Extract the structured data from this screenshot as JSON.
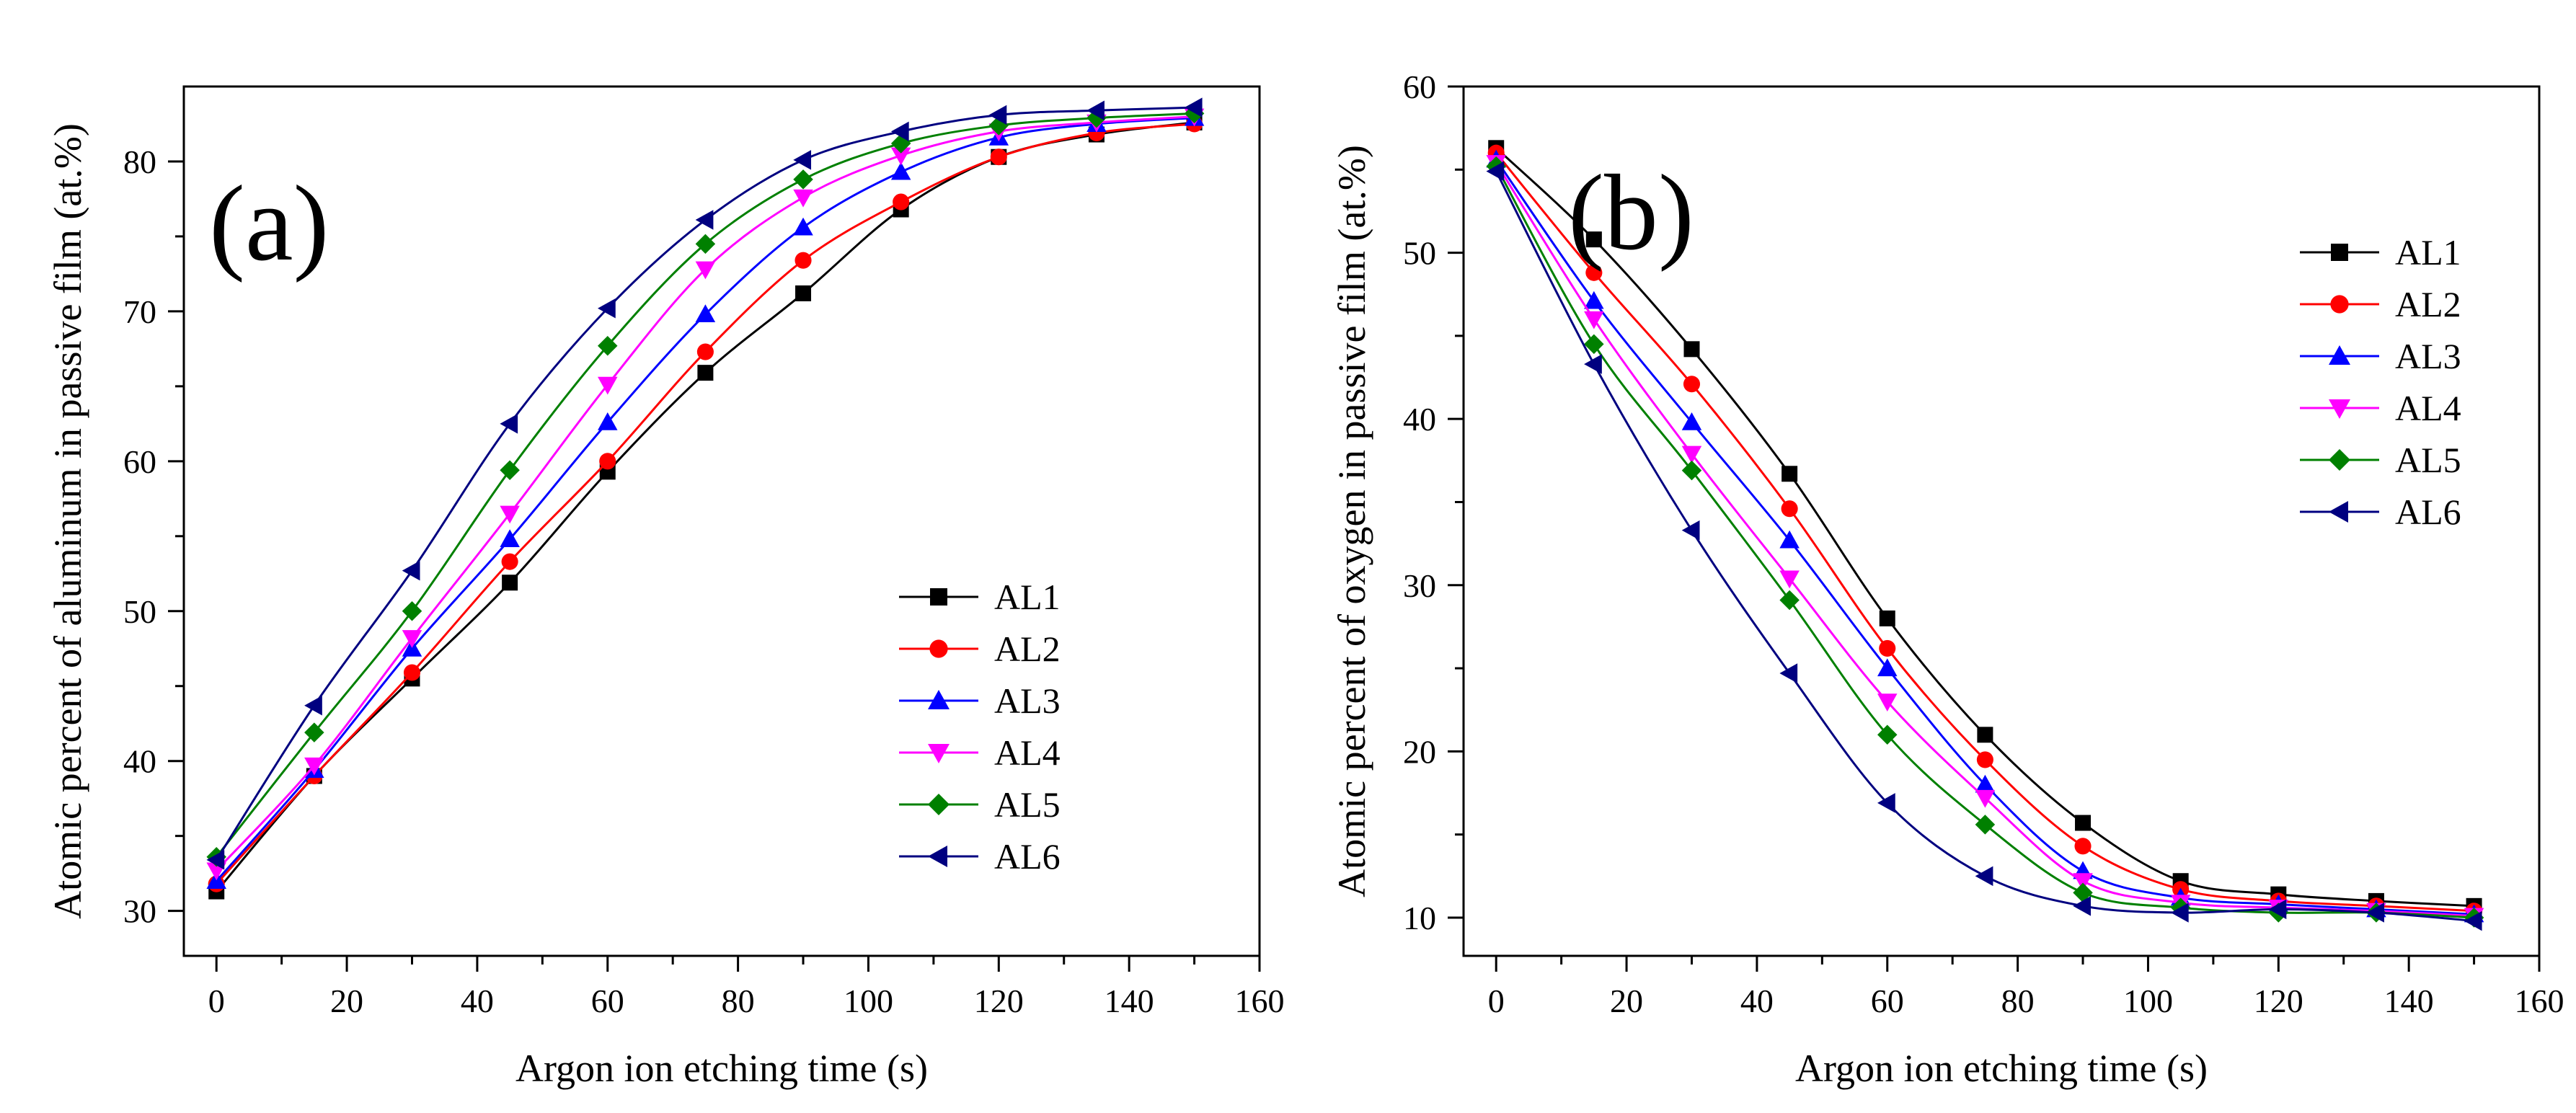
{
  "chart_data": [
    {
      "type": "line",
      "panel_label": "(a)",
      "xlabel": "Argon ion etching time (s)",
      "ylabel": "Atomic percent of aluminum in passive film (at.%)",
      "xlim": [
        -5,
        160
      ],
      "ylim": [
        27,
        85
      ],
      "xticks": [
        0,
        20,
        40,
        60,
        80,
        100,
        120,
        140,
        160
      ],
      "yticks": [
        30,
        40,
        50,
        60,
        70,
        80
      ],
      "x": [
        0,
        15,
        30,
        45,
        60,
        75,
        90,
        105,
        120,
        135,
        150
      ],
      "legend_position": "lower-right",
      "series": [
        {
          "name": "AL1",
          "color": "#000000",
          "marker": "square",
          "values": [
            31.3,
            39.0,
            45.5,
            51.9,
            59.3,
            65.9,
            71.2,
            76.8,
            80.3,
            81.8,
            82.6
          ]
        },
        {
          "name": "AL2",
          "color": "#ff0000",
          "marker": "circle",
          "values": [
            31.8,
            39.0,
            45.9,
            53.3,
            60.0,
            67.3,
            73.4,
            77.3,
            80.3,
            81.9,
            82.5
          ]
        },
        {
          "name": "AL3",
          "color": "#0000ff",
          "marker": "triangle-up",
          "values": [
            32.0,
            39.4,
            47.5,
            54.8,
            62.6,
            69.8,
            75.6,
            79.3,
            81.6,
            82.5,
            82.9
          ]
        },
        {
          "name": "AL4",
          "color": "#ff00ff",
          "marker": "triangle-down",
          "values": [
            32.7,
            39.7,
            48.2,
            56.5,
            65.1,
            72.8,
            77.6,
            80.4,
            82.0,
            82.6,
            83.0
          ]
        },
        {
          "name": "AL5",
          "color": "#008000",
          "marker": "diamond",
          "values": [
            33.6,
            41.9,
            50.0,
            59.4,
            67.7,
            74.5,
            78.8,
            81.2,
            82.4,
            82.9,
            83.2
          ]
        },
        {
          "name": "AL6",
          "color": "#000080",
          "marker": "triangle-left",
          "values": [
            33.4,
            43.7,
            52.7,
            62.5,
            70.2,
            76.1,
            80.1,
            82.0,
            83.1,
            83.4,
            83.6
          ]
        }
      ]
    },
    {
      "type": "line",
      "panel_label": "(b)",
      "xlabel": "Argon ion etching time (s)",
      "ylabel": "Atomic percent of oxygen in passive film (at.%)",
      "xlim": [
        -5,
        160
      ],
      "ylim": [
        7.7,
        60
      ],
      "xticks": [
        0,
        20,
        40,
        60,
        80,
        100,
        120,
        140,
        160
      ],
      "yticks": [
        10,
        20,
        30,
        40,
        50,
        60
      ],
      "x": [
        0,
        15,
        30,
        45,
        60,
        75,
        90,
        105,
        120,
        135,
        150
      ],
      "legend_position": "top-right",
      "series": [
        {
          "name": "AL1",
          "color": "#000000",
          "marker": "square",
          "values": [
            56.3,
            50.8,
            44.2,
            36.7,
            28.0,
            21.0,
            15.7,
            12.2,
            11.4,
            11.0,
            10.7
          ]
        },
        {
          "name": "AL2",
          "color": "#ff0000",
          "marker": "circle",
          "values": [
            56.0,
            48.8,
            42.1,
            34.6,
            26.2,
            19.5,
            14.3,
            11.7,
            11.0,
            10.7,
            10.4
          ]
        },
        {
          "name": "AL3",
          "color": "#0000ff",
          "marker": "triangle-up",
          "values": [
            55.6,
            47.1,
            39.8,
            32.7,
            25.0,
            18.0,
            12.8,
            11.2,
            10.8,
            10.5,
            10.2
          ]
        },
        {
          "name": "AL4",
          "color": "#ff00ff",
          "marker": "triangle-down",
          "values": [
            55.4,
            46.0,
            37.9,
            30.4,
            23.0,
            17.2,
            12.2,
            10.9,
            10.6,
            10.4,
            10.1
          ]
        },
        {
          "name": "AL5",
          "color": "#008000",
          "marker": "diamond",
          "values": [
            55.2,
            44.5,
            36.9,
            29.1,
            21.0,
            15.6,
            11.5,
            10.6,
            10.3,
            10.3,
            10.0
          ]
        },
        {
          "name": "AL6",
          "color": "#000080",
          "marker": "triangle-left",
          "values": [
            54.9,
            43.3,
            33.3,
            24.7,
            16.9,
            12.5,
            10.7,
            10.3,
            10.5,
            10.3,
            9.8
          ]
        }
      ]
    }
  ]
}
